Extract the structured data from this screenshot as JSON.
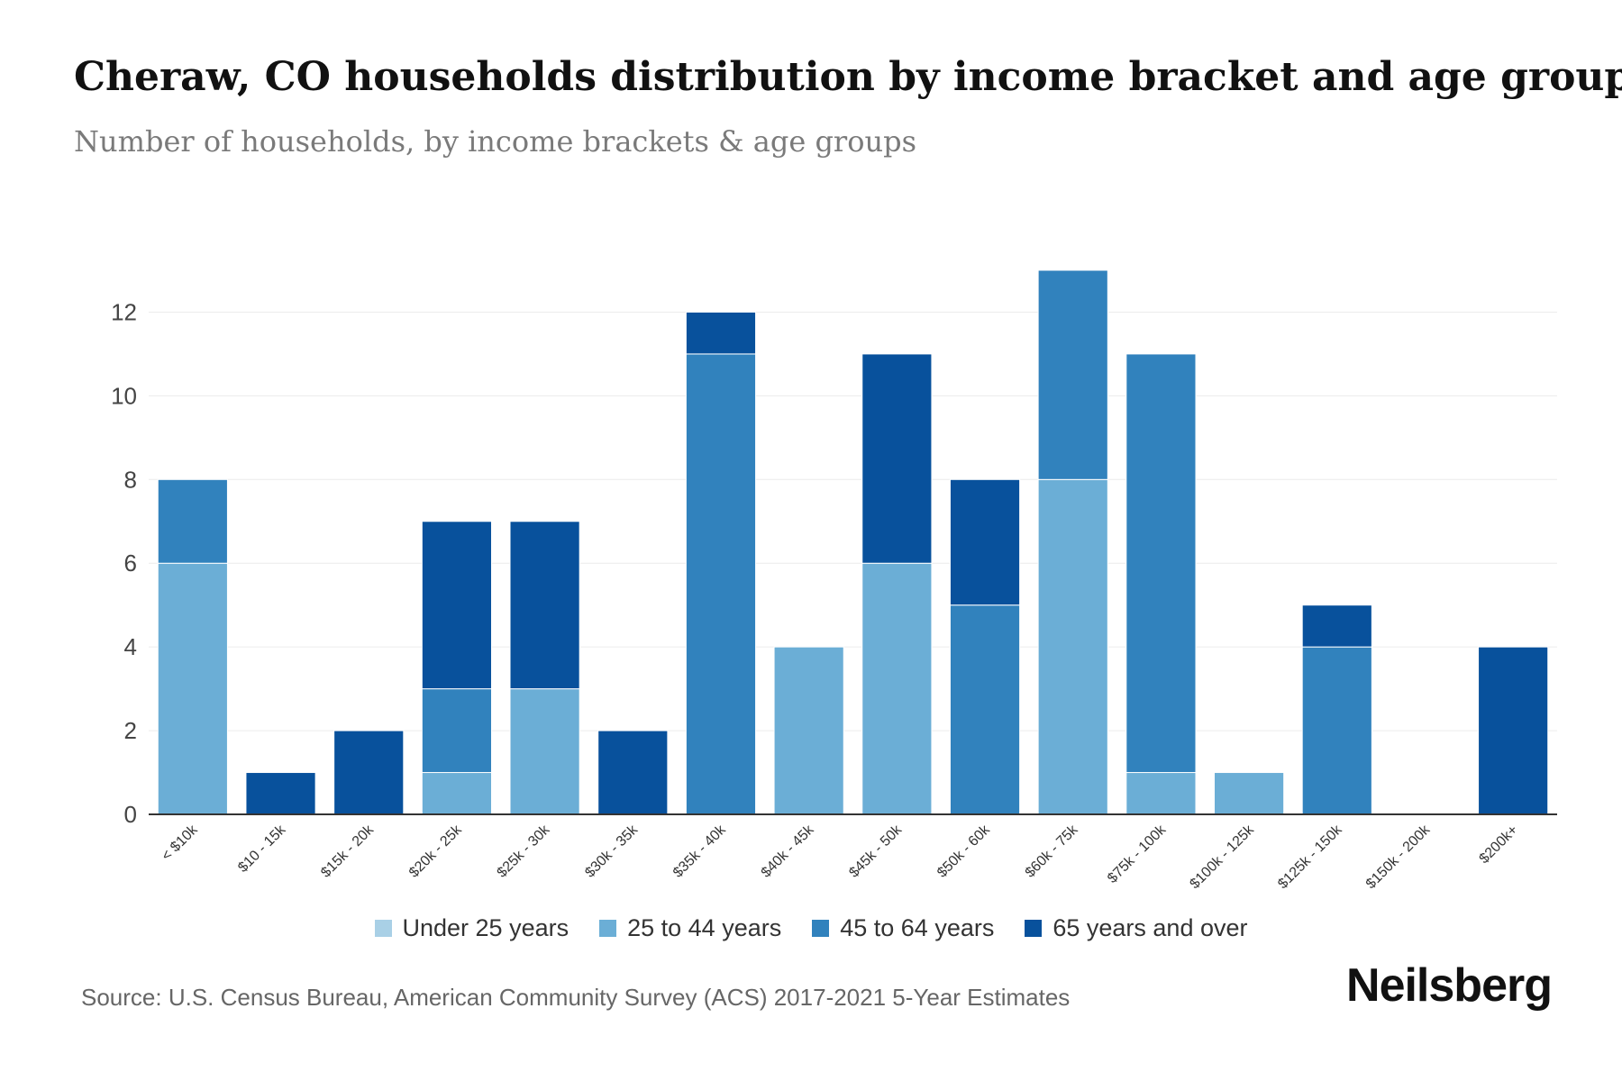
{
  "header": {
    "title": "Cheraw, CO households distribution by income bracket and age group",
    "subtitle": "Number of households, by income brackets & age groups"
  },
  "footer": {
    "source": "Source: U.S. Census Bureau, American Community Survey (ACS) 2017-2021 5-Year Estimates",
    "brand": "Neilsberg"
  },
  "chart_data": {
    "type": "bar",
    "stacked": true,
    "title": "Cheraw, CO households distribution by income bracket and age group",
    "subtitle": "Number of households, by income brackets & age groups",
    "xlabel": "",
    "ylabel": "",
    "ylim": [
      0,
      13
    ],
    "yticks": [
      0,
      2,
      4,
      6,
      8,
      10,
      12
    ],
    "grid": true,
    "legend_position": "bottom",
    "categories": [
      "< $10k",
      "$10 - 15k",
      "$15k - 20k",
      "$20k - 25k",
      "$25k - 30k",
      "$30k - 35k",
      "$35k - 40k",
      "$40k - 45k",
      "$45k - 50k",
      "$50k - 60k",
      "$60k - 75k",
      "$75k - 100k",
      "$100k - 125k",
      "$125k - 150k",
      "$150k - 200k",
      "$200k+"
    ],
    "series": [
      {
        "name": "Under 25 years",
        "color": "#a9d0e6",
        "values": [
          0,
          0,
          0,
          0,
          0,
          0,
          0,
          0,
          0,
          0,
          0,
          0,
          0,
          0,
          0,
          0
        ]
      },
      {
        "name": "25 to 44 years",
        "color": "#6baed6",
        "values": [
          6,
          0,
          0,
          1,
          3,
          0,
          0,
          4,
          6,
          0,
          8,
          1,
          1,
          0,
          0,
          0
        ]
      },
      {
        "name": "45 to 64 years",
        "color": "#3182bd",
        "values": [
          2,
          0,
          0,
          2,
          0,
          0,
          11,
          0,
          0,
          5,
          5,
          10,
          0,
          4,
          0,
          0
        ]
      },
      {
        "name": "65 years and over",
        "color": "#08519c",
        "values": [
          0,
          1,
          2,
          4,
          4,
          2,
          1,
          0,
          5,
          3,
          0,
          0,
          0,
          1,
          0,
          4
        ]
      }
    ]
  }
}
